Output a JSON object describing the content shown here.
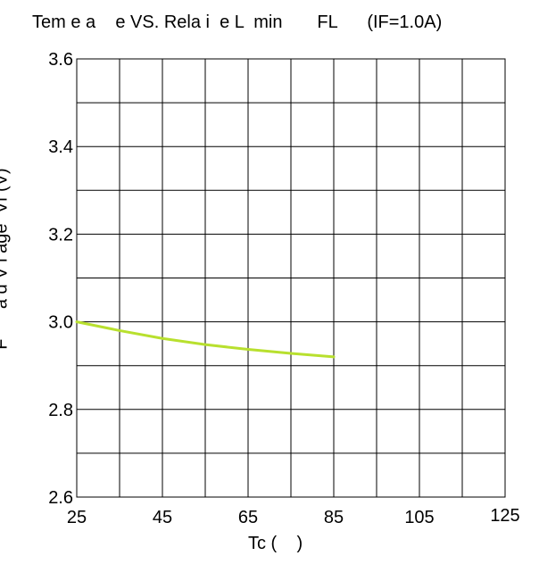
{
  "chart_data": {
    "type": "line",
    "title": "Tem e a    e VS. Rela i  e L  min       FL      (IF=1.0A)",
    "xlabel": "Tc (    )",
    "ylabel": "F      a d V l age  Vf (V)",
    "xlim": [
      25,
      125
    ],
    "ylim": [
      2.6,
      3.6
    ],
    "x_ticks": [
      "25",
      "45",
      "65",
      "85",
      "105",
      "125"
    ],
    "y_ticks": [
      "2.6",
      "2.8",
      "3.0",
      "3.2",
      "3.4",
      "3.6"
    ],
    "grid": true,
    "series": [
      {
        "color": "#b8e02e",
        "x": [
          25,
          35,
          45,
          55,
          65,
          75,
          85
        ],
        "y": [
          3.0,
          2.98,
          2.962,
          2.948,
          2.937,
          2.928,
          2.92
        ]
      }
    ]
  }
}
